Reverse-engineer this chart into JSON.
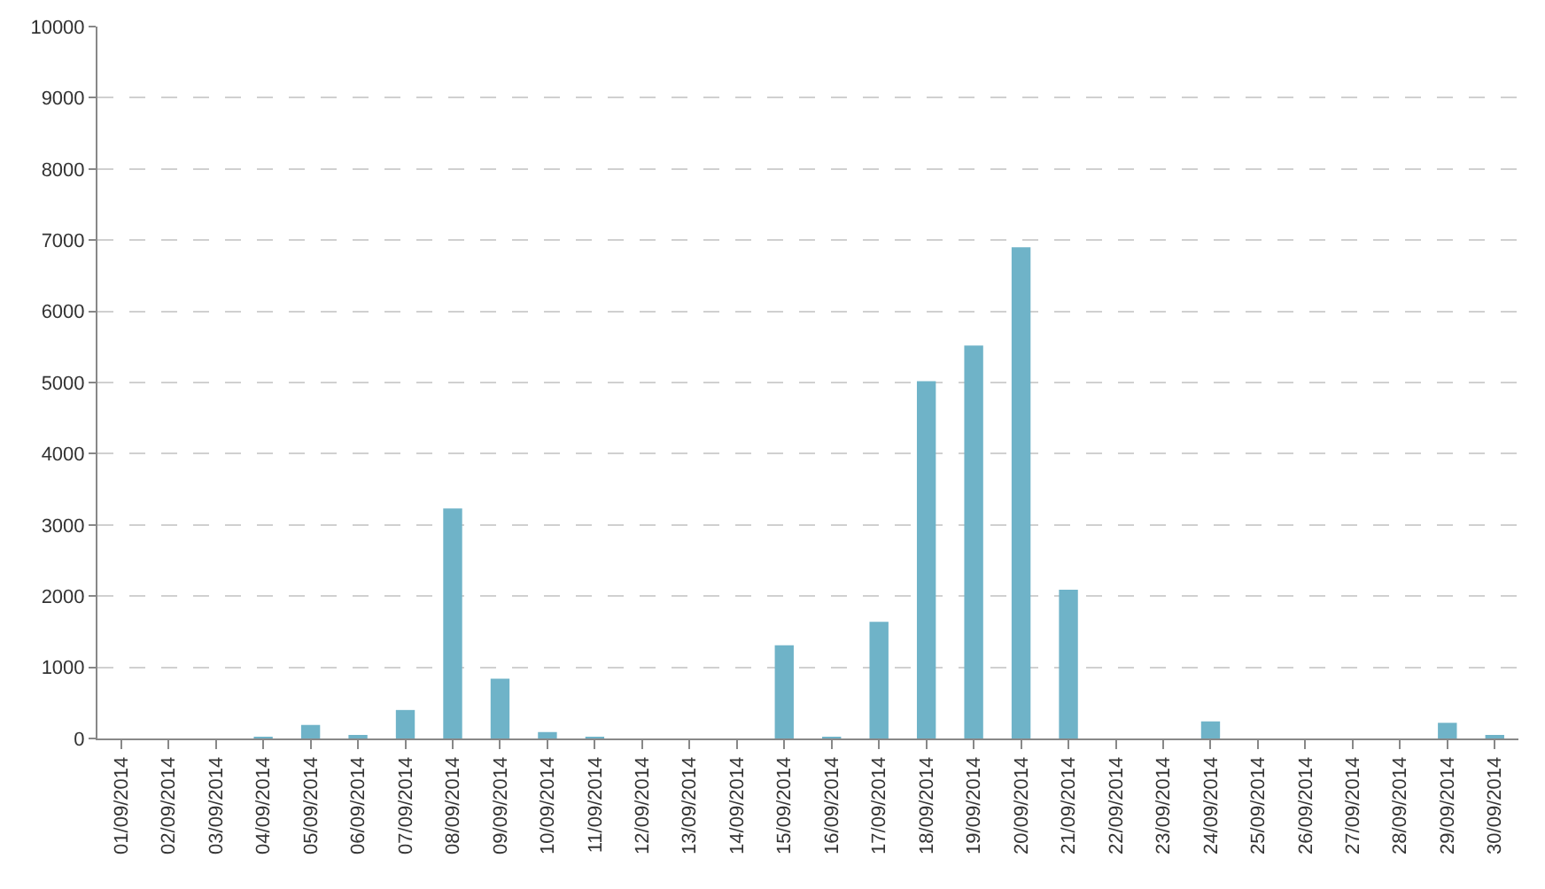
{
  "chart_data": {
    "type": "bar",
    "categories": [
      "01/09/2014",
      "02/09/2014",
      "03/09/2014",
      "04/09/2014",
      "05/09/2014",
      "06/09/2014",
      "07/09/2014",
      "08/09/2014",
      "09/09/2014",
      "10/09/2014",
      "11/09/2014",
      "12/09/2014",
      "13/09/2014",
      "14/09/2014",
      "15/09/2014",
      "16/09/2014",
      "17/09/2014",
      "18/09/2014",
      "19/09/2014",
      "20/09/2014",
      "21/09/2014",
      "22/09/2014",
      "23/09/2014",
      "24/09/2014",
      "25/09/2014",
      "26/09/2014",
      "27/09/2014",
      "28/09/2014",
      "29/09/2014",
      "30/09/2014"
    ],
    "values": [
      0,
      0,
      0,
      20,
      190,
      50,
      400,
      3230,
      840,
      90,
      20,
      0,
      0,
      0,
      1310,
      20,
      1640,
      5020,
      5520,
      6900,
      2090,
      0,
      0,
      240,
      0,
      0,
      0,
      0,
      220,
      50
    ],
    "color": "#6fb3c8",
    "ylim": [
      0,
      10000
    ],
    "yticks": [
      0,
      1000,
      2000,
      3000,
      4000,
      5000,
      6000,
      7000,
      8000,
      9000,
      10000
    ],
    "grid": "y"
  }
}
